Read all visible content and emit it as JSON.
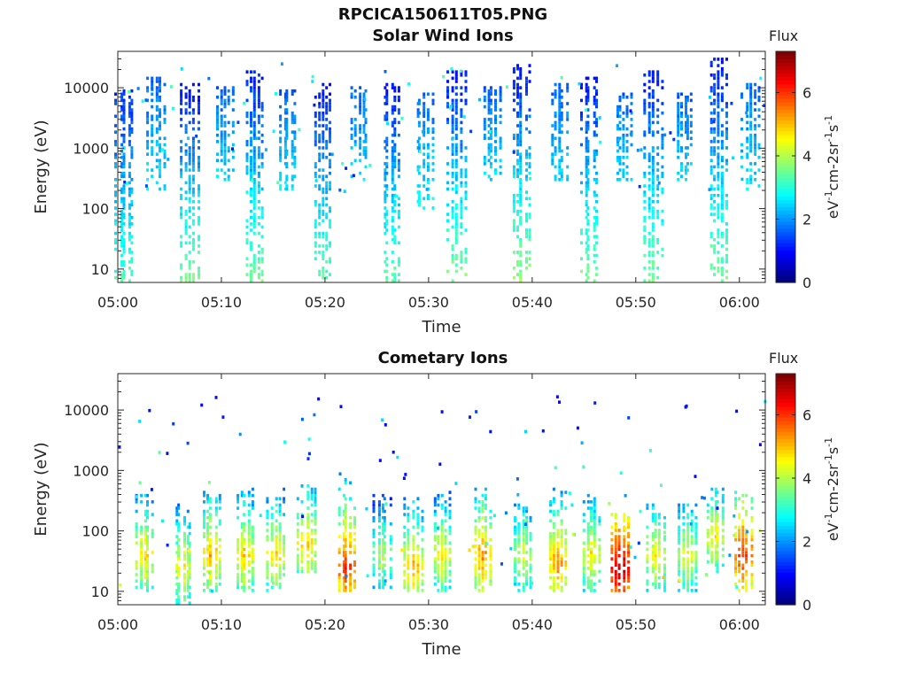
{
  "page_title": "RPCICA150611T05.PNG",
  "chart_data": [
    {
      "type": "heatmap",
      "title": "Solar Wind Ions",
      "xlabel": "Time",
      "ylabel": "Energy (eV)",
      "xticks": [
        "05:00",
        "05:10",
        "05:20",
        "05:30",
        "05:40",
        "05:50",
        "06:00"
      ],
      "yticks": [
        "10",
        "100",
        "1000",
        "10000"
      ],
      "y_scale": "log",
      "ylim": [
        6,
        40000
      ],
      "xlim_minutes": [
        0,
        62.5
      ],
      "colorbar": {
        "title": "Flux",
        "label": "eV-1cm-2sr-1s-1",
        "ticks": [
          "0",
          "2",
          "4",
          "6"
        ],
        "range": [
          0,
          7.3
        ],
        "colormap": "jet"
      },
      "bursts": [
        {
          "t": 0.5,
          "emin": 6,
          "emax": 9000,
          "flux_high": 1.2,
          "flux_low": 3.2
        },
        {
          "t": 3.6,
          "emin": 200,
          "emax": 15000,
          "flux_high": 1.6,
          "flux_low": 2.6
        },
        {
          "t": 6.8,
          "emin": 6,
          "emax": 12000,
          "flux_high": 1.0,
          "flux_low": 3.6
        },
        {
          "t": 10.3,
          "emin": 300,
          "emax": 10000,
          "flux_high": 1.6,
          "flux_low": 2.5
        },
        {
          "t": 13.2,
          "emin": 6,
          "emax": 20000,
          "flux_high": 1.0,
          "flux_low": 3.6
        },
        {
          "t": 16.3,
          "emin": 200,
          "emax": 9000,
          "flux_high": 1.6,
          "flux_low": 2.6
        },
        {
          "t": 19.6,
          "emin": 6,
          "emax": 12000,
          "flux_high": 1.0,
          "flux_low": 3.4
        },
        {
          "t": 23.2,
          "emin": 300,
          "emax": 10000,
          "flux_high": 1.6,
          "flux_low": 2.5
        },
        {
          "t": 26.3,
          "emin": 6,
          "emax": 12000,
          "flux_high": 1.0,
          "flux_low": 3.4
        },
        {
          "t": 29.5,
          "emin": 100,
          "emax": 8000,
          "flux_high": 1.6,
          "flux_low": 2.8
        },
        {
          "t": 32.6,
          "emin": 6,
          "emax": 20000,
          "flux_high": 1.0,
          "flux_low": 3.6
        },
        {
          "t": 36.0,
          "emin": 300,
          "emax": 10000,
          "flux_high": 1.6,
          "flux_low": 2.5
        },
        {
          "t": 38.8,
          "emin": 6,
          "emax": 25000,
          "flux_high": 1.0,
          "flux_low": 3.8
        },
        {
          "t": 42.5,
          "emin": 300,
          "emax": 12000,
          "flux_high": 1.6,
          "flux_low": 2.5
        },
        {
          "t": 45.4,
          "emin": 6,
          "emax": 15000,
          "flux_high": 1.0,
          "flux_low": 3.6
        },
        {
          "t": 48.8,
          "emin": 300,
          "emax": 8000,
          "flux_high": 1.6,
          "flux_low": 2.5
        },
        {
          "t": 51.6,
          "emin": 6,
          "emax": 20000,
          "flux_high": 1.0,
          "flux_low": 3.6
        },
        {
          "t": 54.6,
          "emin": 300,
          "emax": 8000,
          "flux_high": 1.6,
          "flux_low": 2.5
        },
        {
          "t": 57.8,
          "emin": 6,
          "emax": 30000,
          "flux_high": 1.0,
          "flux_low": 3.6
        },
        {
          "t": 61.0,
          "emin": 200,
          "emax": 12000,
          "flux_high": 1.6,
          "flux_low": 2.6
        }
      ]
    },
    {
      "type": "heatmap",
      "title": "Cometary Ions",
      "xlabel": "Time",
      "ylabel": "Energy (eV)",
      "xticks": [
        "05:00",
        "05:10",
        "05:20",
        "05:30",
        "05:40",
        "05:50",
        "06:00"
      ],
      "yticks": [
        "10",
        "100",
        "1000",
        "10000"
      ],
      "y_scale": "log",
      "ylim": [
        6,
        40000
      ],
      "xlim_minutes": [
        0,
        62.5
      ],
      "colorbar": {
        "title": "Flux",
        "label": "eV-1cm-2sr-1s-1",
        "ticks": [
          "0",
          "2",
          "4",
          "6"
        ],
        "range": [
          0,
          7.3
        ],
        "colormap": "jet"
      },
      "bursts": [
        {
          "t": 2.5,
          "emin": 10,
          "emax": 600,
          "peak_e": 40,
          "flux_peak": 5.0
        },
        {
          "t": 6.2,
          "emin": 6,
          "emax": 300,
          "peak_e": 25,
          "flux_peak": 4.8
        },
        {
          "t": 8.9,
          "emin": 10,
          "emax": 500,
          "peak_e": 40,
          "flux_peak": 5.2
        },
        {
          "t": 12.1,
          "emin": 10,
          "emax": 500,
          "peak_e": 40,
          "flux_peak": 5.0
        },
        {
          "t": 15.1,
          "emin": 10,
          "emax": 500,
          "peak_e": 40,
          "flux_peak": 5.0
        },
        {
          "t": 18.1,
          "emin": 20,
          "emax": 600,
          "peak_e": 60,
          "flux_peak": 5.0
        },
        {
          "t": 22.0,
          "emin": 10,
          "emax": 800,
          "peak_e": 25,
          "flux_peak": 6.2
        },
        {
          "t": 25.4,
          "emin": 10,
          "emax": 400,
          "peak_e": 40,
          "flux_peak": 4.2
        },
        {
          "t": 28.4,
          "emin": 10,
          "emax": 400,
          "peak_e": 25,
          "flux_peak": 5.2
        },
        {
          "t": 31.2,
          "emin": 10,
          "emax": 500,
          "peak_e": 40,
          "flux_peak": 4.8
        },
        {
          "t": 35.1,
          "emin": 10,
          "emax": 500,
          "peak_e": 40,
          "flux_peak": 5.5
        },
        {
          "t": 38.9,
          "emin": 10,
          "emax": 300,
          "peak_e": 40,
          "flux_peak": 4.5
        },
        {
          "t": 42.4,
          "emin": 10,
          "emax": 500,
          "peak_e": 30,
          "flux_peak": 5.5
        },
        {
          "t": 45.6,
          "emin": 10,
          "emax": 400,
          "peak_e": 40,
          "flux_peak": 4.8
        },
        {
          "t": 48.3,
          "emin": 10,
          "emax": 200,
          "peak_e": 25,
          "flux_peak": 7.0
        },
        {
          "t": 51.8,
          "emin": 10,
          "emax": 300,
          "peak_e": 40,
          "flux_peak": 4.8
        },
        {
          "t": 54.8,
          "emin": 10,
          "emax": 300,
          "peak_e": 40,
          "flux_peak": 4.6
        },
        {
          "t": 57.5,
          "emin": 20,
          "emax": 500,
          "peak_e": 80,
          "flux_peak": 4.8
        },
        {
          "t": 60.3,
          "emin": 10,
          "emax": 600,
          "peak_e": 40,
          "flux_peak": 6.2
        }
      ]
    }
  ]
}
